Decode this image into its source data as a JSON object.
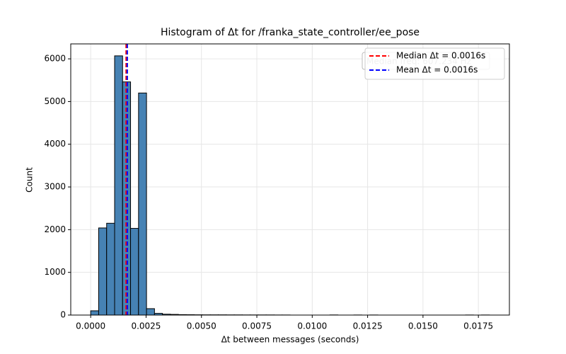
{
  "chart_data": {
    "type": "histogram",
    "title": "Histogram of Δt for /franka_state_controller/ee_pose",
    "x_label": "Δt between messages (seconds)",
    "y_label": "Count",
    "bins": [
      0,
      0.00036,
      0.00072,
      0.00108,
      0.00144,
      0.0018,
      0.00216,
      0.00252,
      0.00288,
      0.00324,
      0.0036,
      0.00396,
      0.00432,
      0.00468,
      0.00504,
      0.0054,
      0.00576,
      0.00612,
      0.00648,
      0.00684,
      0.0072,
      0.00756,
      0.00792,
      0.00828,
      0.00864,
      0.009,
      0.00936,
      0.00972,
      0.01008,
      0.01044,
      0.0108,
      0.01116,
      0.01152,
      0.01188,
      0.01224,
      0.0126,
      0.01296,
      0.01332,
      0.01368,
      0.01404,
      0.0144,
      0.01476,
      0.01512,
      0.01548,
      0.01584,
      0.0162,
      0.01656,
      0.01692,
      0.01728,
      0.01764,
      0.018
    ],
    "counts": [
      100,
      2040,
      2150,
      6070,
      5460,
      2030,
      5200,
      150,
      40,
      20,
      15,
      10,
      8,
      6,
      5,
      5,
      5,
      4,
      4,
      3,
      3,
      3,
      3,
      2,
      2,
      0,
      0,
      0,
      0,
      0,
      3,
      0,
      0,
      2,
      0,
      2,
      0,
      0,
      0,
      0,
      0,
      0,
      0,
      0,
      0,
      0,
      0,
      2,
      0,
      2
    ],
    "color": "#4682b4",
    "edge_color": "#000000",
    "vlines": [
      {
        "name": "Median Δt = 0.0016s",
        "color": "#ff0000",
        "value": 0.0016
      },
      {
        "name": "Mean Δt = 0.0016s",
        "color": "#0000ff",
        "value": 0.00165
      }
    ],
    "annotation": "Median freq: 607.234 Hz",
    "xlim": [
      -0.0009,
      0.0189
    ],
    "ylim": [
      0,
      6350
    ],
    "xticks": [
      {
        "value": 0,
        "label": "0.0000"
      },
      {
        "value": 0.0025,
        "label": "0.0025"
      },
      {
        "value": 0.005,
        "label": "0.0050"
      },
      {
        "value": 0.0075,
        "label": "0.0075"
      },
      {
        "value": 0.01,
        "label": "0.0100"
      },
      {
        "value": 0.0125,
        "label": "0.0125"
      },
      {
        "value": 0.015,
        "label": "0.0150"
      },
      {
        "value": 0.0175,
        "label": "0.0175"
      }
    ],
    "yticks": [
      0,
      1000,
      2000,
      3000,
      4000,
      5000,
      6000
    ],
    "grid": true,
    "legend": "upper right"
  }
}
